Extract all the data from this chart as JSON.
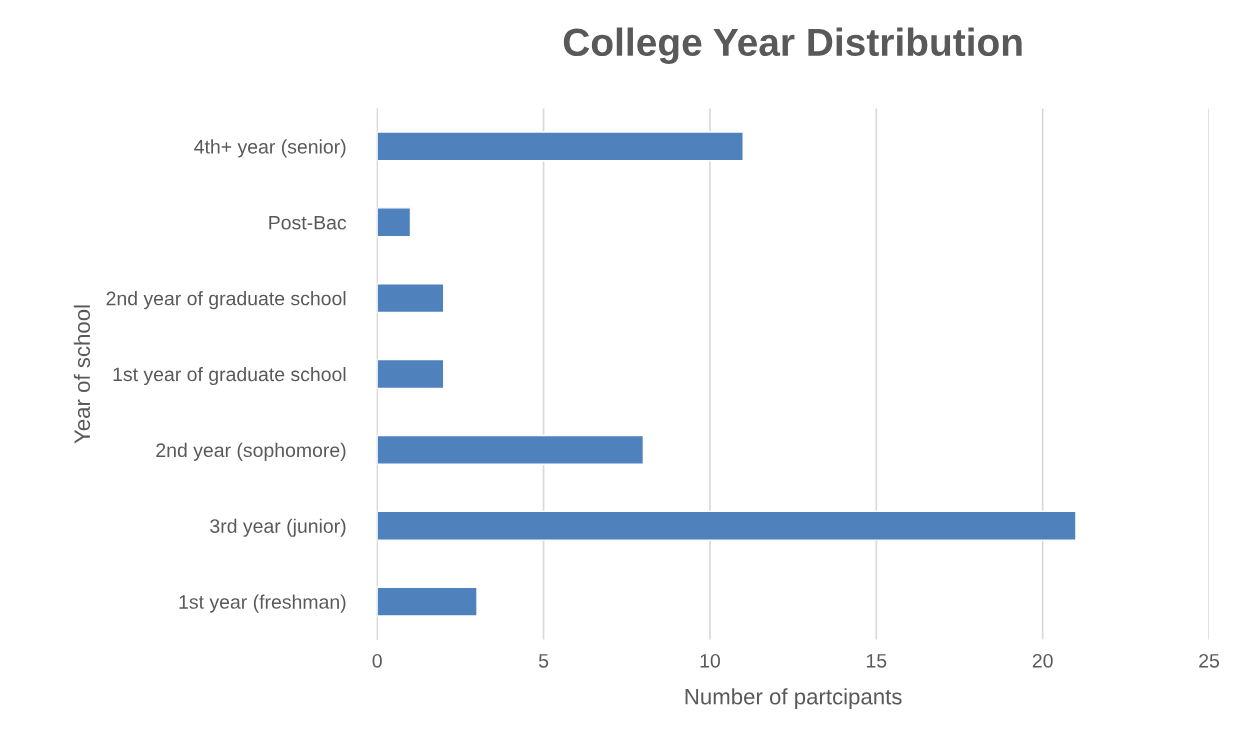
{
  "chart_data": {
    "type": "bar",
    "orientation": "horizontal",
    "title": "College Year Distribution",
    "xlabel": "Number of partcipants",
    "ylabel": "Year of school",
    "categories": [
      "4th+ year (senior)",
      "Post-Bac",
      "2nd year of graduate school",
      "1st year of graduate school",
      "2nd year (sophomore)",
      "3rd year (junior)",
      "1st year (freshman)"
    ],
    "values": [
      11,
      1,
      2,
      2,
      8,
      21,
      3
    ],
    "color": "#4f81bd",
    "xlim": [
      0,
      25
    ],
    "xticks": [
      0,
      5,
      10,
      15,
      20,
      25
    ],
    "grid": "x",
    "legend": false
  }
}
